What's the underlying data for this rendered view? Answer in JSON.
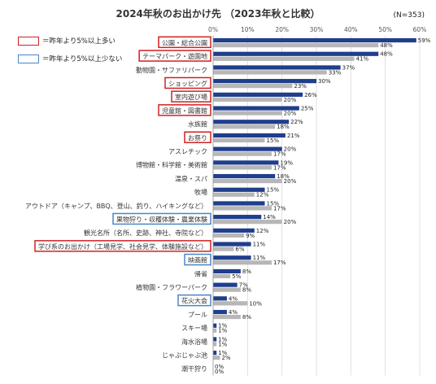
{
  "chart_data": {
    "type": "bar",
    "orientation": "horizontal",
    "title": "2024年秋のお出かけ先 （2023年秋と比較）",
    "sample_size": "(N=353)",
    "xlim": [
      0,
      60
    ],
    "xticks": [
      "0%",
      "10%",
      "20%",
      "30%",
      "40%",
      "50%",
      "60%"
    ],
    "grid": true,
    "legend": [
      {
        "label": "＝昨年より5%以上多い",
        "highlight": "red"
      },
      {
        "label": "＝昨年より5%以上少ない",
        "highlight": "blue"
      }
    ],
    "categories": [
      "公園・総合公園",
      "テーマパーク・遊園地",
      "動物園・サファリパーク",
      "ショッピング",
      "室内遊び場",
      "児童館・図書館",
      "水族館",
      "お祭り",
      "アスレチック",
      "博物館・科学館・美術館",
      "温泉・スパ",
      "牧場",
      "アウトドア（キャンプ、BBQ、登山、釣り、ハイキングなど）",
      "果物狩り・収穫体験・農業体験",
      "観光名所（名所、史跡、神社、寺院など）",
      "学び系のお出かけ（工場見学、社会見学、体験施設など）",
      "映画館",
      "帰省",
      "植物園・フラワーパーク",
      "花火大会",
      "プール",
      "スキー場",
      "海水浴場",
      "じゃぶじゃぶ池",
      "潮干狩り"
    ],
    "highlights": [
      "red",
      "red",
      "none",
      "red",
      "red",
      "red",
      "none",
      "red",
      "none",
      "none",
      "none",
      "none",
      "none",
      "blue",
      "none",
      "red",
      "blue",
      "none",
      "none",
      "blue",
      "none",
      "none",
      "none",
      "none",
      "none"
    ],
    "series": [
      {
        "values": [
          59,
          48,
          37,
          30,
          26,
          25,
          22,
          21,
          20,
          19,
          18,
          15,
          15,
          14,
          12,
          11,
          11,
          8,
          7,
          4,
          4,
          1,
          1,
          1,
          0
        ],
        "color": "#1f3e8c"
      },
      {
        "values": [
          48,
          41,
          33,
          23,
          20,
          20,
          18,
          15,
          17,
          17,
          20,
          12,
          17,
          20,
          9,
          6,
          17,
          5,
          8,
          10,
          8,
          1,
          1,
          2,
          0
        ],
        "color": "#b7b7b7"
      }
    ]
  }
}
